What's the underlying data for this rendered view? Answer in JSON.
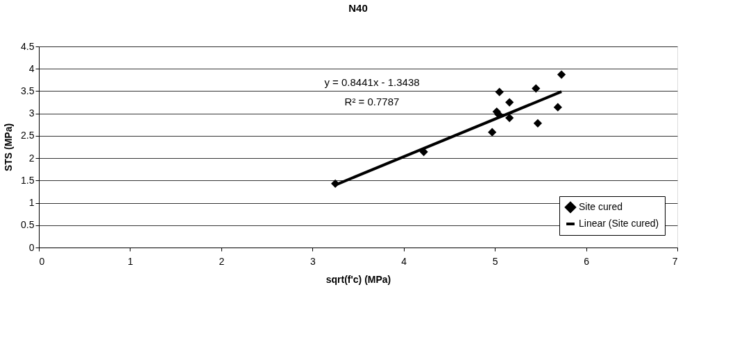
{
  "chart_data": {
    "type": "scatter",
    "title": "N40",
    "xlabel": "sqrt(f'c) (MPa)",
    "ylabel": "STS (MPa)",
    "xlim": [
      0,
      7
    ],
    "xticks": [
      0,
      1,
      2,
      3,
      4,
      5,
      6,
      7
    ],
    "ylim": [
      0,
      4.5
    ],
    "yticks": [
      0,
      0.5,
      1,
      1.5,
      2,
      2.5,
      3,
      3.5,
      4,
      4.5
    ],
    "grid": "y",
    "legend": "bottom right",
    "annotations": [
      "y = 0.8441x - 1.3438",
      "R² = 0.7787"
    ],
    "series": [
      {
        "name": "Site cured",
        "marker": "diamond",
        "color": "#000000",
        "x": [
          3.25,
          4.22,
          5.05,
          5.45,
          5.16,
          5.02,
          5.04,
          5.16,
          5.69,
          5.47,
          4.97,
          5.73
        ],
        "values": [
          1.43,
          2.14,
          3.48,
          3.56,
          3.25,
          3.04,
          2.98,
          2.9,
          3.14,
          2.78,
          2.58,
          3.87
        ]
      },
      {
        "name": "Linear (Site cured)",
        "type": "line",
        "marker": "none",
        "color": "#000000",
        "x": [
          3.25,
          5.73
        ],
        "values": [
          1.4,
          3.49
        ]
      }
    ]
  }
}
